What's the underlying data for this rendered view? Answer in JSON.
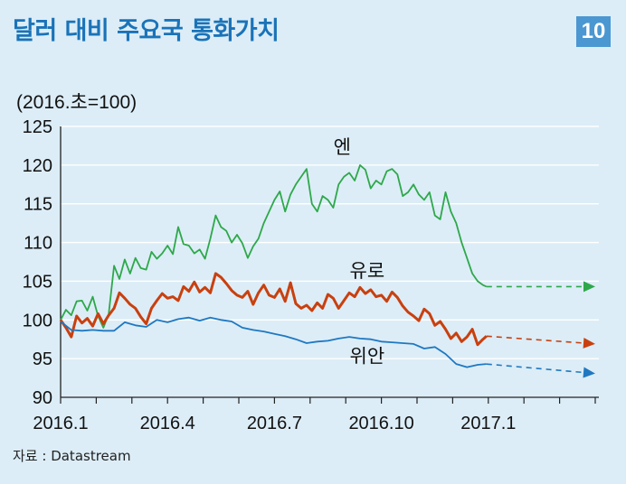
{
  "header": {
    "title": "달러 대비 주요국 통화가치",
    "badge": "10"
  },
  "footer": {
    "source": "자료 : Datastream"
  },
  "chart_data": {
    "type": "line",
    "unit_label": "(2016.초=100)",
    "x_ticks": [
      "2016.1",
      "2016.4",
      "2016.7",
      "2016.10",
      "2017.1"
    ],
    "x_tick_months": [
      0,
      3,
      6,
      9,
      12
    ],
    "xlim_months": [
      0,
      15
    ],
    "ylim": [
      90,
      125
    ],
    "y_ticks": [
      90,
      95,
      100,
      105,
      110,
      115,
      120,
      125
    ],
    "grid": true,
    "colors": {
      "엔": "#2ea84a",
      "유로": "#c9400f",
      "위안": "#1f78c1"
    },
    "series": [
      {
        "name": "엔",
        "label_at": [
          7.9,
          121.5
        ],
        "points": [
          [
            0,
            100
          ],
          [
            0.15,
            101.3
          ],
          [
            0.3,
            100.6
          ],
          [
            0.45,
            102.4
          ],
          [
            0.6,
            102.5
          ],
          [
            0.75,
            101.2
          ],
          [
            0.9,
            103.0
          ],
          [
            1.05,
            100.5
          ],
          [
            1.2,
            99.0
          ],
          [
            1.35,
            100.8
          ],
          [
            1.5,
            107.0
          ],
          [
            1.65,
            105.3
          ],
          [
            1.8,
            107.8
          ],
          [
            1.95,
            106.0
          ],
          [
            2.1,
            108.0
          ],
          [
            2.25,
            106.7
          ],
          [
            2.4,
            106.5
          ],
          [
            2.55,
            108.8
          ],
          [
            2.7,
            107.9
          ],
          [
            2.85,
            108.6
          ],
          [
            3.0,
            109.6
          ],
          [
            3.15,
            108.5
          ],
          [
            3.3,
            112.0
          ],
          [
            3.45,
            109.8
          ],
          [
            3.6,
            109.6
          ],
          [
            3.75,
            108.6
          ],
          [
            3.9,
            109.1
          ],
          [
            4.05,
            107.9
          ],
          [
            4.2,
            110.5
          ],
          [
            4.35,
            113.5
          ],
          [
            4.5,
            112.0
          ],
          [
            4.65,
            111.5
          ],
          [
            4.8,
            110.0
          ],
          [
            4.95,
            111.0
          ],
          [
            5.1,
            109.9
          ],
          [
            5.25,
            108.0
          ],
          [
            5.4,
            109.5
          ],
          [
            5.55,
            110.5
          ],
          [
            5.7,
            112.5
          ],
          [
            5.85,
            114.0
          ],
          [
            6.0,
            115.5
          ],
          [
            6.15,
            116.6
          ],
          [
            6.3,
            114.0
          ],
          [
            6.45,
            116.2
          ],
          [
            6.6,
            117.5
          ],
          [
            6.75,
            118.5
          ],
          [
            6.9,
            119.5
          ],
          [
            7.05,
            115.0
          ],
          [
            7.2,
            114.0
          ],
          [
            7.35,
            116.0
          ],
          [
            7.5,
            115.5
          ],
          [
            7.65,
            114.5
          ],
          [
            7.8,
            117.5
          ],
          [
            7.95,
            118.5
          ],
          [
            8.1,
            119.0
          ],
          [
            8.25,
            118.0
          ],
          [
            8.4,
            120.0
          ],
          [
            8.55,
            119.4
          ],
          [
            8.7,
            117.0
          ],
          [
            8.85,
            118.0
          ],
          [
            9.0,
            117.5
          ],
          [
            9.15,
            119.2
          ],
          [
            9.3,
            119.5
          ],
          [
            9.45,
            118.8
          ],
          [
            9.6,
            116.0
          ],
          [
            9.75,
            116.5
          ],
          [
            9.9,
            117.5
          ],
          [
            10.05,
            116.2
          ],
          [
            10.2,
            115.5
          ],
          [
            10.35,
            116.5
          ],
          [
            10.5,
            113.5
          ],
          [
            10.65,
            113.0
          ],
          [
            10.8,
            116.5
          ],
          [
            10.95,
            114.0
          ],
          [
            11.1,
            112.5
          ],
          [
            11.25,
            110.0
          ],
          [
            11.4,
            108.0
          ],
          [
            11.55,
            106.0
          ],
          [
            11.7,
            105.0
          ],
          [
            11.85,
            104.5
          ],
          [
            11.95,
            104.3
          ],
          [
            15.0,
            104.3
          ]
        ],
        "forecast_from_month": 12
      },
      {
        "name": "유로",
        "label_at": [
          8.6,
          105.5
        ],
        "points": [
          [
            0,
            100
          ],
          [
            0.15,
            99.0
          ],
          [
            0.3,
            97.8
          ],
          [
            0.45,
            100.5
          ],
          [
            0.6,
            99.6
          ],
          [
            0.75,
            100.2
          ],
          [
            0.9,
            99.2
          ],
          [
            1.05,
            100.8
          ],
          [
            1.2,
            99.5
          ],
          [
            1.35,
            100.6
          ],
          [
            1.5,
            101.5
          ],
          [
            1.65,
            103.5
          ],
          [
            1.8,
            102.8
          ],
          [
            1.95,
            102.0
          ],
          [
            2.1,
            101.5
          ],
          [
            2.25,
            100.4
          ],
          [
            2.4,
            99.5
          ],
          [
            2.55,
            101.5
          ],
          [
            2.7,
            102.5
          ],
          [
            2.85,
            103.4
          ],
          [
            3.0,
            102.8
          ],
          [
            3.15,
            103.0
          ],
          [
            3.3,
            102.5
          ],
          [
            3.45,
            104.3
          ],
          [
            3.6,
            103.7
          ],
          [
            3.75,
            104.9
          ],
          [
            3.9,
            103.6
          ],
          [
            4.05,
            104.2
          ],
          [
            4.2,
            103.5
          ],
          [
            4.35,
            106.0
          ],
          [
            4.5,
            105.5
          ],
          [
            4.65,
            104.7
          ],
          [
            4.8,
            103.8
          ],
          [
            4.95,
            103.2
          ],
          [
            5.1,
            102.9
          ],
          [
            5.25,
            103.7
          ],
          [
            5.4,
            102.0
          ],
          [
            5.55,
            103.5
          ],
          [
            5.7,
            104.5
          ],
          [
            5.85,
            103.2
          ],
          [
            6.0,
            102.9
          ],
          [
            6.15,
            104.0
          ],
          [
            6.3,
            102.4
          ],
          [
            6.45,
            104.8
          ],
          [
            6.6,
            102.1
          ],
          [
            6.75,
            101.5
          ],
          [
            6.9,
            101.9
          ],
          [
            7.05,
            101.2
          ],
          [
            7.2,
            102.2
          ],
          [
            7.35,
            101.5
          ],
          [
            7.5,
            103.3
          ],
          [
            7.65,
            102.8
          ],
          [
            7.8,
            101.5
          ],
          [
            7.95,
            102.5
          ],
          [
            8.1,
            103.5
          ],
          [
            8.25,
            103.0
          ],
          [
            8.4,
            104.2
          ],
          [
            8.55,
            103.4
          ],
          [
            8.7,
            103.9
          ],
          [
            8.85,
            103.0
          ],
          [
            9.0,
            103.2
          ],
          [
            9.15,
            102.4
          ],
          [
            9.3,
            103.6
          ],
          [
            9.45,
            102.9
          ],
          [
            9.6,
            101.8
          ],
          [
            9.75,
            101.0
          ],
          [
            9.9,
            100.5
          ],
          [
            10.05,
            99.9
          ],
          [
            10.2,
            101.4
          ],
          [
            10.35,
            100.8
          ],
          [
            10.5,
            99.3
          ],
          [
            10.65,
            99.8
          ],
          [
            10.8,
            98.8
          ],
          [
            10.95,
            97.6
          ],
          [
            11.1,
            98.3
          ],
          [
            11.25,
            97.2
          ],
          [
            11.4,
            97.8
          ],
          [
            11.55,
            98.8
          ],
          [
            11.7,
            96.8
          ],
          [
            11.85,
            97.5
          ],
          [
            11.95,
            97.9
          ],
          [
            15.0,
            97.0
          ]
        ],
        "forecast_from_month": 12
      },
      {
        "name": "위안",
        "label_at": [
          8.6,
          94.5
        ],
        "points": [
          [
            0,
            99.8
          ],
          [
            0.3,
            98.7
          ],
          [
            0.6,
            98.6
          ],
          [
            0.9,
            98.7
          ],
          [
            1.2,
            98.6
          ],
          [
            1.5,
            98.6
          ],
          [
            1.8,
            99.7
          ],
          [
            2.1,
            99.3
          ],
          [
            2.4,
            99.1
          ],
          [
            2.7,
            100.0
          ],
          [
            3.0,
            99.7
          ],
          [
            3.3,
            100.1
          ],
          [
            3.6,
            100.3
          ],
          [
            3.9,
            99.9
          ],
          [
            4.2,
            100.3
          ],
          [
            4.5,
            100.0
          ],
          [
            4.8,
            99.8
          ],
          [
            5.1,
            99.0
          ],
          [
            5.4,
            98.7
          ],
          [
            5.7,
            98.5
          ],
          [
            6.0,
            98.2
          ],
          [
            6.3,
            97.9
          ],
          [
            6.6,
            97.5
          ],
          [
            6.9,
            97.0
          ],
          [
            7.2,
            97.2
          ],
          [
            7.5,
            97.3
          ],
          [
            7.8,
            97.6
          ],
          [
            8.1,
            97.8
          ],
          [
            8.4,
            97.6
          ],
          [
            8.7,
            97.5
          ],
          [
            9.0,
            97.2
          ],
          [
            9.3,
            97.1
          ],
          [
            9.6,
            97.0
          ],
          [
            9.9,
            96.9
          ],
          [
            10.2,
            96.3
          ],
          [
            10.5,
            96.5
          ],
          [
            10.8,
            95.6
          ],
          [
            11.1,
            94.3
          ],
          [
            11.4,
            93.9
          ],
          [
            11.7,
            94.2
          ],
          [
            11.95,
            94.3
          ],
          [
            15.0,
            93.2
          ]
        ],
        "forecast_from_month": 12
      }
    ]
  }
}
